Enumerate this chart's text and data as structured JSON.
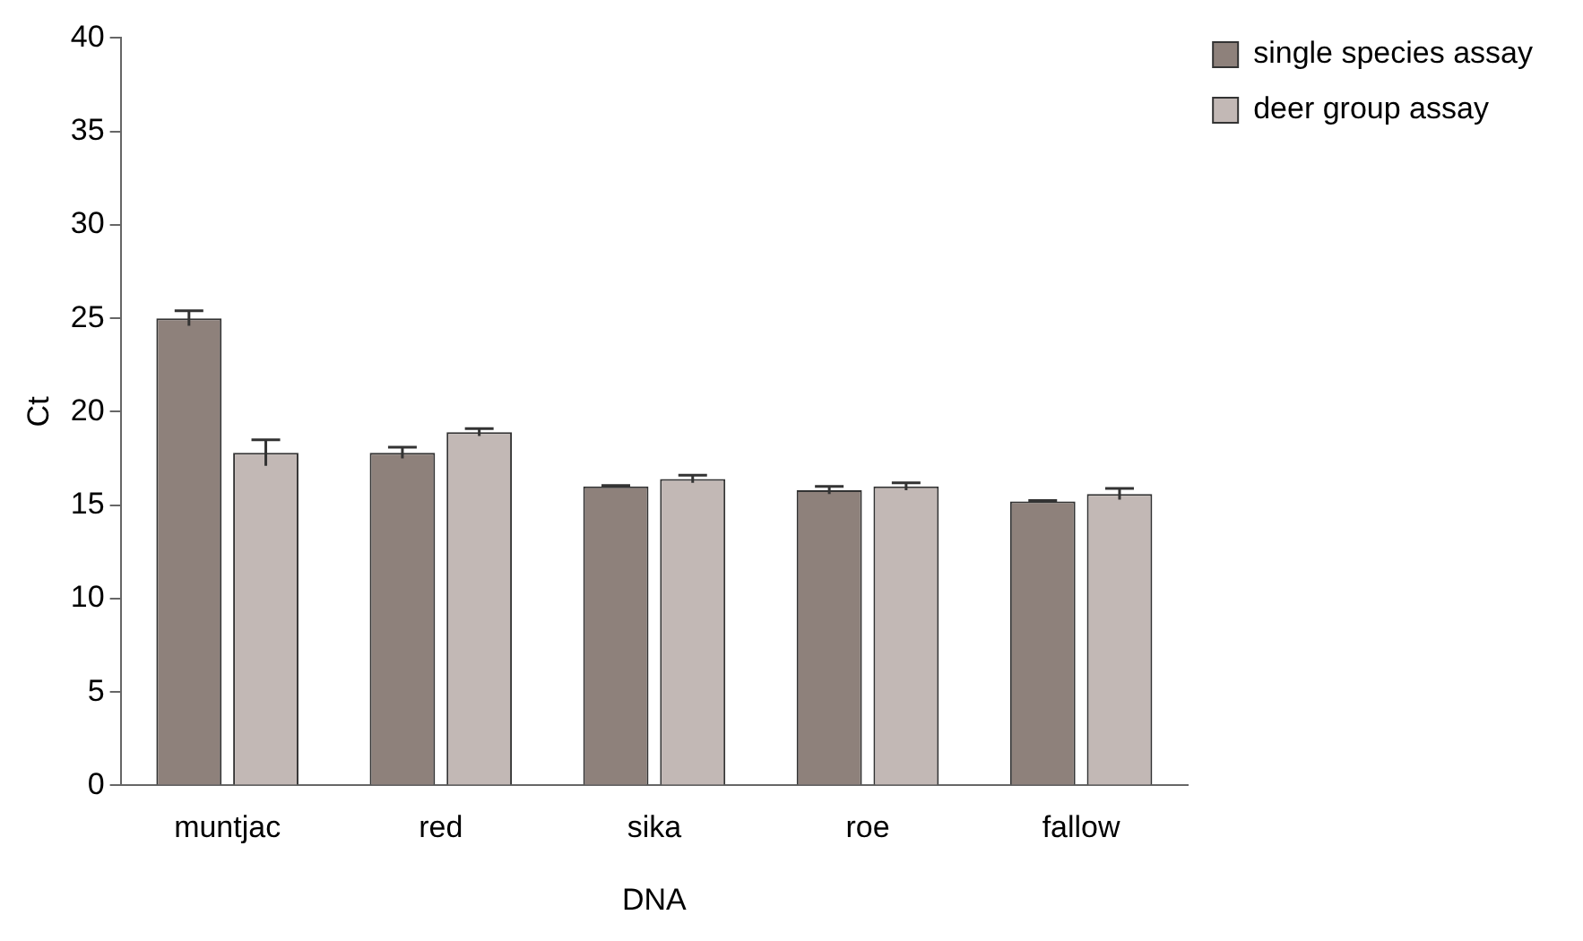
{
  "chart_data": {
    "type": "bar",
    "xlabel": "DNA",
    "ylabel": "Ct",
    "categories": [
      "muntjac",
      "red",
      "sika",
      "roe",
      "fallow"
    ],
    "series": [
      {
        "name": "single species assay",
        "color": "#8e817b",
        "values": [
          25.0,
          17.8,
          16.0,
          15.8,
          15.2
        ],
        "errors": [
          0.4,
          0.3,
          0.05,
          0.2,
          0.05
        ]
      },
      {
        "name": "deer group assay",
        "color": "#c2b8b5",
        "values": [
          17.8,
          18.9,
          16.4,
          16.0,
          15.6
        ],
        "errors": [
          0.7,
          0.2,
          0.2,
          0.2,
          0.3
        ]
      }
    ],
    "ylim": [
      0,
      40
    ],
    "yticks": [
      0,
      5,
      10,
      15,
      20,
      25,
      30,
      35,
      40
    ],
    "grid": false,
    "legend": "top right"
  }
}
